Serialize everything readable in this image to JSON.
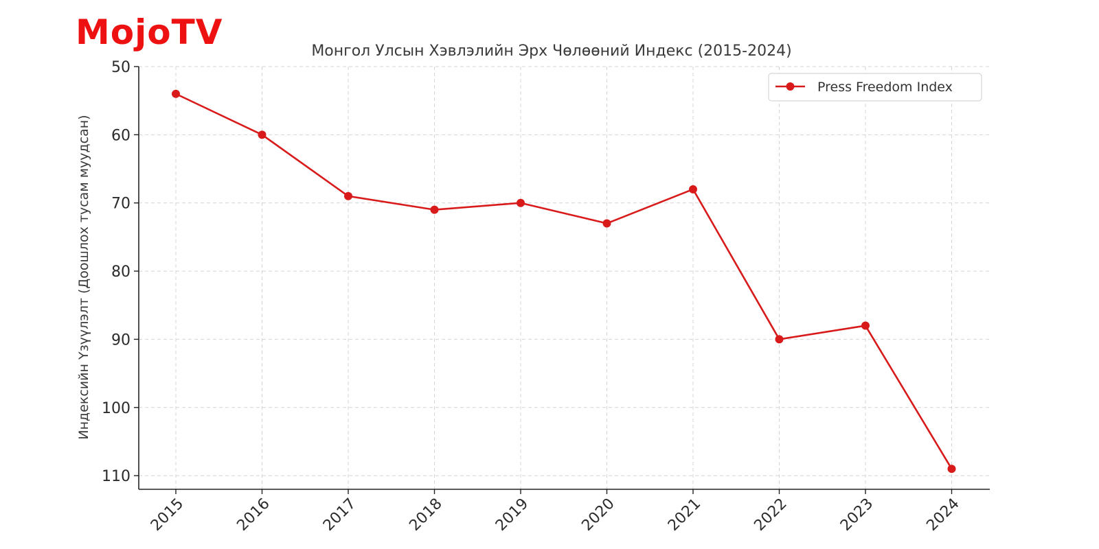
{
  "logo": {
    "text": "MojoTV",
    "color": "#ee1111"
  },
  "chart_data": {
    "type": "line",
    "title": "Монгол Улсын Хэвлэлийн Эрх Чөлөөний Индекс (2015-2024)",
    "xlabel": "",
    "ylabel": "Индексийн Үзүүлэлт (Доошлох тусам муудсан)",
    "categories": [
      "2015",
      "2016",
      "2017",
      "2018",
      "2019",
      "2020",
      "2021",
      "2022",
      "2023",
      "2024"
    ],
    "series": [
      {
        "name": "Press Freedom Index",
        "color": "#d91a1a",
        "values": [
          54,
          60,
          69,
          71,
          70,
          73,
          68,
          90,
          88,
          109
        ]
      }
    ],
    "ylim": [
      50,
      112
    ],
    "y_inverted": true,
    "y_ticks": [
      50,
      60,
      70,
      80,
      90,
      100,
      110
    ],
    "grid": true,
    "legend_position": "top-right"
  }
}
